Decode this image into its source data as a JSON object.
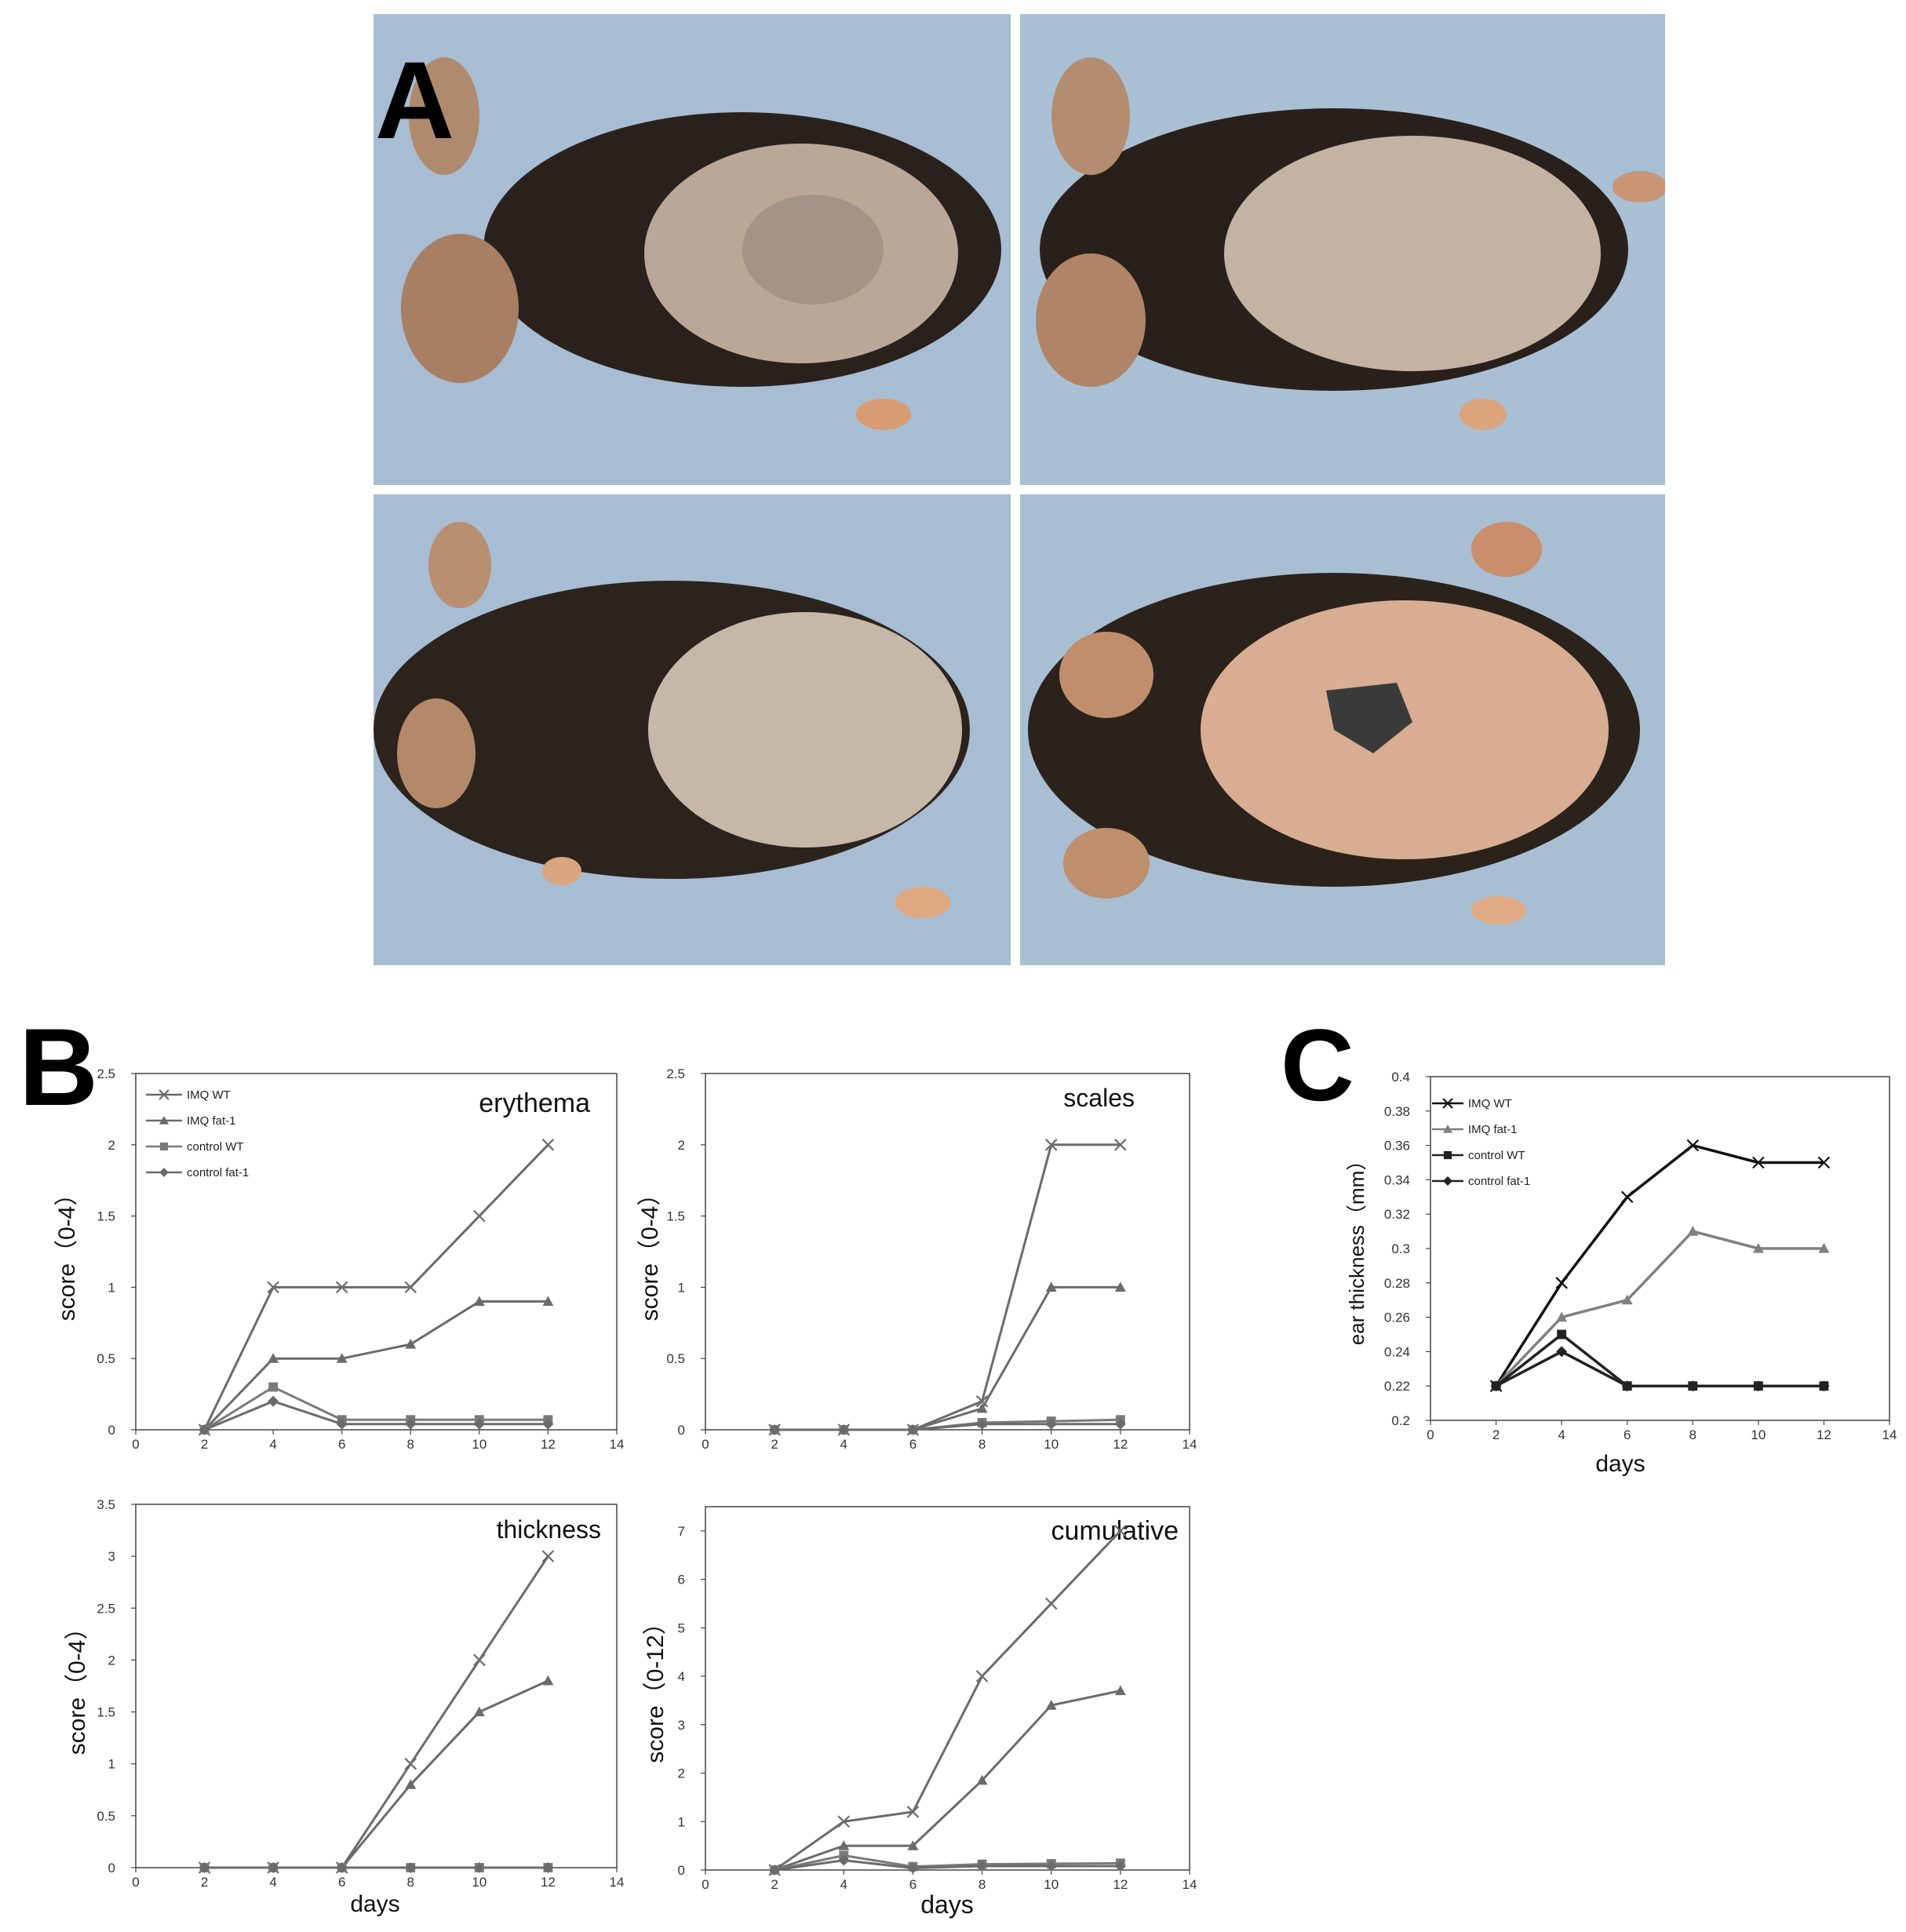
{
  "panel_labels": {
    "a": "A",
    "b": "B",
    "c": "C"
  },
  "photo_icons": [
    "mouse-photo-icon",
    "mouse-photo-icon",
    "mouse-photo-icon",
    "mouse-photo-icon"
  ],
  "legend_labels": [
    "IMQ WT",
    "IMQ fat-1",
    "control WT",
    "control fat-1"
  ],
  "chart_data": [
    {
      "type": "line",
      "panel": "B",
      "title": "erythema",
      "xlabel": "",
      "ylabel": "score（0-4）",
      "xlim": [
        0,
        14
      ],
      "ylim": [
        0,
        2.5
      ],
      "xticks": [
        0,
        2,
        4,
        6,
        8,
        10,
        12,
        14
      ],
      "yticks": [
        0,
        0.5,
        1,
        1.5,
        2,
        2.5
      ],
      "legend": "top-left",
      "x": [
        2,
        4,
        6,
        8,
        10,
        12
      ],
      "series": [
        {
          "name": "IMQ WT",
          "marker": "x",
          "color": "#6b6b6b",
          "values": [
            0,
            1,
            1,
            1,
            1.5,
            2
          ]
        },
        {
          "name": "IMQ fat-1",
          "marker": "triangle",
          "color": "#6b6b6b",
          "values": [
            0,
            0.5,
            0.5,
            0.6,
            0.9,
            0.9
          ]
        },
        {
          "name": "control WT",
          "marker": "square",
          "color": "#7a7a7a",
          "values": [
            0,
            0.3,
            0.07,
            0.07,
            0.07,
            0.07
          ]
        },
        {
          "name": "control fat-1",
          "marker": "diamond",
          "color": "#6b6b6b",
          "values": [
            0,
            0.2,
            0.04,
            0.04,
            0.04,
            0.04
          ]
        }
      ]
    },
    {
      "type": "line",
      "panel": "B",
      "title": "scales",
      "xlabel": "",
      "ylabel": "score（0-4）",
      "xlim": [
        0,
        14
      ],
      "ylim": [
        0,
        2.5
      ],
      "xticks": [
        0,
        2,
        4,
        6,
        8,
        10,
        12,
        14
      ],
      "yticks": [
        0,
        0.5,
        1,
        1.5,
        2,
        2.5
      ],
      "legend": "none",
      "x": [
        2,
        4,
        6,
        8,
        10,
        12
      ],
      "series": [
        {
          "marker": "x",
          "color": "#6b6b6b",
          "values": [
            0,
            0,
            0,
            0.2,
            2,
            2
          ]
        },
        {
          "marker": "triangle",
          "color": "#6b6b6b",
          "values": [
            0,
            0,
            0,
            0.15,
            1,
            1
          ]
        },
        {
          "marker": "square",
          "color": "#7a7a7a",
          "values": [
            0,
            0,
            0,
            0.05,
            0.06,
            0.07
          ]
        },
        {
          "marker": "diamond",
          "color": "#6b6b6b",
          "values": [
            0,
            0,
            0,
            0.04,
            0.04,
            0.04
          ]
        }
      ]
    },
    {
      "type": "line",
      "panel": "B",
      "title": "thickness",
      "xlabel": "days",
      "ylabel": "score（0-4）",
      "xlim": [
        0,
        14
      ],
      "ylim": [
        0,
        3.5
      ],
      "xticks": [
        0,
        2,
        4,
        6,
        8,
        10,
        12,
        14
      ],
      "yticks": [
        0,
        0.5,
        1,
        1.5,
        2,
        2.5,
        3,
        3.5
      ],
      "legend": "none",
      "x": [
        2,
        4,
        6,
        8,
        10,
        12
      ],
      "series": [
        {
          "marker": "x",
          "color": "#6b6b6b",
          "values": [
            0,
            0,
            0,
            1,
            2,
            3
          ]
        },
        {
          "marker": "triangle",
          "color": "#6b6b6b",
          "values": [
            0,
            0,
            0,
            0.8,
            1.5,
            1.8
          ]
        },
        {
          "marker": "square",
          "color": "#7a7a7a",
          "values": [
            0,
            0,
            0,
            0,
            0,
            0
          ]
        },
        {
          "marker": "diamond",
          "color": "#6b6b6b",
          "values": [
            0,
            0,
            0,
            0,
            0,
            0
          ]
        }
      ]
    },
    {
      "type": "line",
      "panel": "B",
      "title": "cumulative",
      "xlabel": "days",
      "ylabel": "score（0-12）",
      "xlim": [
        0,
        14
      ],
      "ylim": [
        0,
        7.5
      ],
      "xticks": [
        0,
        2,
        4,
        6,
        8,
        10,
        12,
        14
      ],
      "yticks": [
        0,
        1,
        2,
        3,
        4,
        5,
        6,
        7
      ],
      "legend": "none",
      "x": [
        2,
        4,
        6,
        8,
        10,
        12
      ],
      "series": [
        {
          "marker": "x",
          "color": "#6b6b6b",
          "values": [
            0,
            1,
            1.2,
            4,
            5.5,
            7
          ]
        },
        {
          "marker": "triangle",
          "color": "#6b6b6b",
          "values": [
            0,
            0.5,
            0.5,
            1.85,
            3.4,
            3.7
          ]
        },
        {
          "marker": "square",
          "color": "#7a7a7a",
          "values": [
            0,
            0.3,
            0.07,
            0.12,
            0.13,
            0.14
          ]
        },
        {
          "marker": "diamond",
          "color": "#6b6b6b",
          "values": [
            0,
            0.2,
            0.04,
            0.08,
            0.08,
            0.08
          ]
        }
      ]
    },
    {
      "type": "line",
      "panel": "C",
      "title": "",
      "xlabel": "days",
      "ylabel": "ear thickness（mm）",
      "xlim": [
        0,
        14
      ],
      "ylim": [
        0.2,
        0.4
      ],
      "xticks": [
        0,
        2,
        4,
        6,
        8,
        10,
        12,
        14
      ],
      "yticks": [
        0.2,
        0.22,
        0.24,
        0.26,
        0.28,
        0.3,
        0.32,
        0.34,
        0.36,
        0.38,
        0.4
      ],
      "legend": "top-left",
      "x": [
        2,
        4,
        6,
        8,
        10,
        12
      ],
      "series": [
        {
          "name": "IMQ WT",
          "marker": "x",
          "color": "#111111",
          "values": [
            0.22,
            0.28,
            0.33,
            0.36,
            0.35,
            0.35
          ]
        },
        {
          "name": "IMQ fat-1",
          "marker": "triangle",
          "color": "#808080",
          "values": [
            0.22,
            0.26,
            0.27,
            0.31,
            0.3,
            0.3
          ]
        },
        {
          "name": "control WT",
          "marker": "square",
          "color": "#222222",
          "values": [
            0.22,
            0.25,
            0.22,
            0.22,
            0.22,
            0.22
          ]
        },
        {
          "name": "control fat-1",
          "marker": "diamond",
          "color": "#222222",
          "values": [
            0.22,
            0.24,
            0.22,
            0.22,
            0.22,
            0.22
          ]
        }
      ]
    }
  ]
}
